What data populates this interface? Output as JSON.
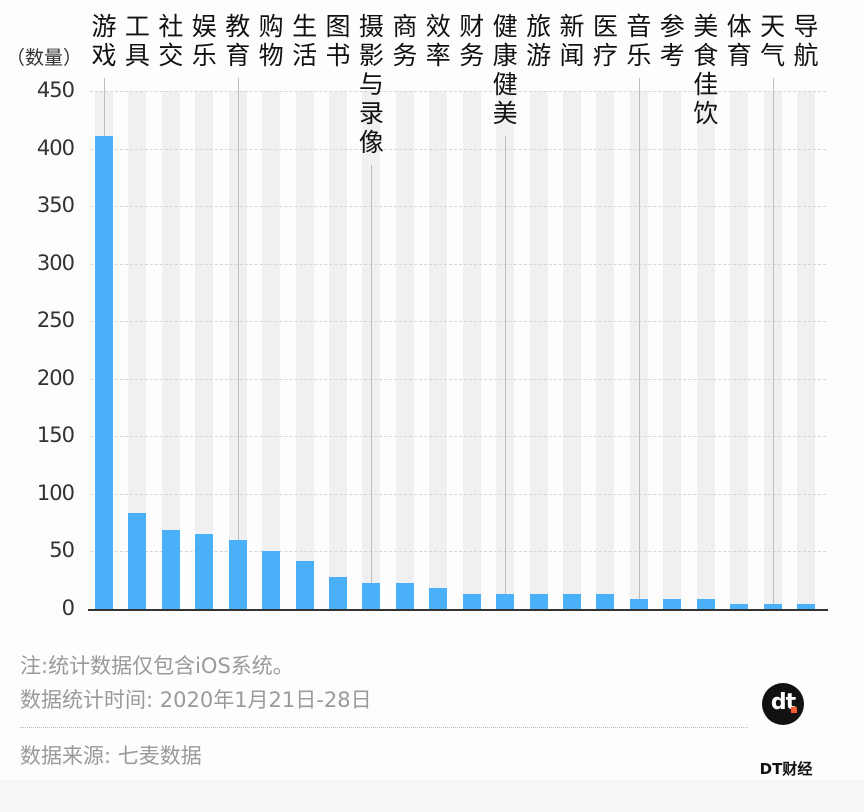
{
  "chart_data": {
    "type": "bar",
    "title": "",
    "xlabel": "",
    "ylabel": "（数量）",
    "ylim": [
      0,
      450
    ],
    "yticks": [
      0,
      50,
      100,
      150,
      200,
      250,
      300,
      350,
      400,
      450
    ],
    "grid": true,
    "legend": null,
    "categories": [
      "游戏",
      "工具",
      "社交",
      "娱乐",
      "教育",
      "购物",
      "生活",
      "图书",
      "摄影与录像",
      "商务",
      "效率",
      "财务",
      "健康健美",
      "旅游",
      "新闻",
      "医疗",
      "音乐",
      "参考",
      "美食佳饮",
      "体育",
      "天气",
      "导航"
    ],
    "values": [
      411,
      83,
      69,
      65,
      60,
      50,
      42,
      28,
      23,
      23,
      18,
      13,
      13,
      13,
      13,
      13,
      9,
      9,
      9,
      4,
      4,
      4
    ],
    "bar_color": "#4ab0f7",
    "background_column_color": "#f0f0f2"
  },
  "axis": {
    "unit_label": "（数量）",
    "ytick_labels": [
      "450",
      "400",
      "350",
      "300",
      "250",
      "200",
      "150",
      "100",
      "50",
      "0"
    ]
  },
  "footer": {
    "note": "注:统计数据仅包含iOS系统。",
    "period": "数据统计时间: 2020年1月21日-28日",
    "source": "数据来源: 七麦数据"
  },
  "logo": {
    "mark": "dt",
    "name": "DT财经",
    "accent": "#f25c2c"
  }
}
